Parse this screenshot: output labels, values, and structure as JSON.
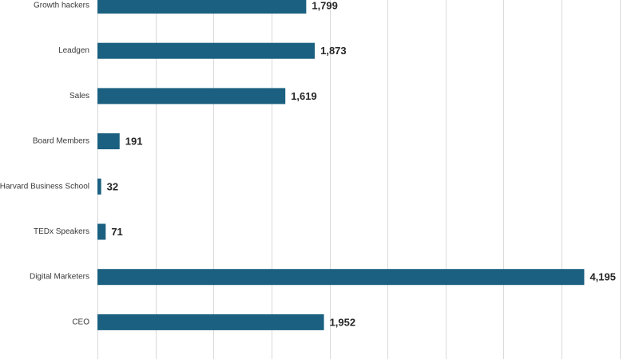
{
  "chart_data": {
    "type": "bar",
    "orientation": "horizontal",
    "categories": [
      "Growth hackers",
      "Leadgen",
      "Sales",
      "Board Members",
      "Harvard Business School",
      "TEDx Speakers",
      "Digital Marketers",
      "CEO"
    ],
    "values": [
      1799,
      1873,
      1619,
      191,
      32,
      71,
      4195,
      1952
    ],
    "value_labels": [
      "1,799",
      "1,873",
      "1,619",
      "191",
      "32",
      "71",
      "4,195",
      "1,952"
    ],
    "xlim": [
      0,
      4500
    ],
    "x_grid_step": 500,
    "grid": true,
    "bar_color": "#1b6080"
  }
}
